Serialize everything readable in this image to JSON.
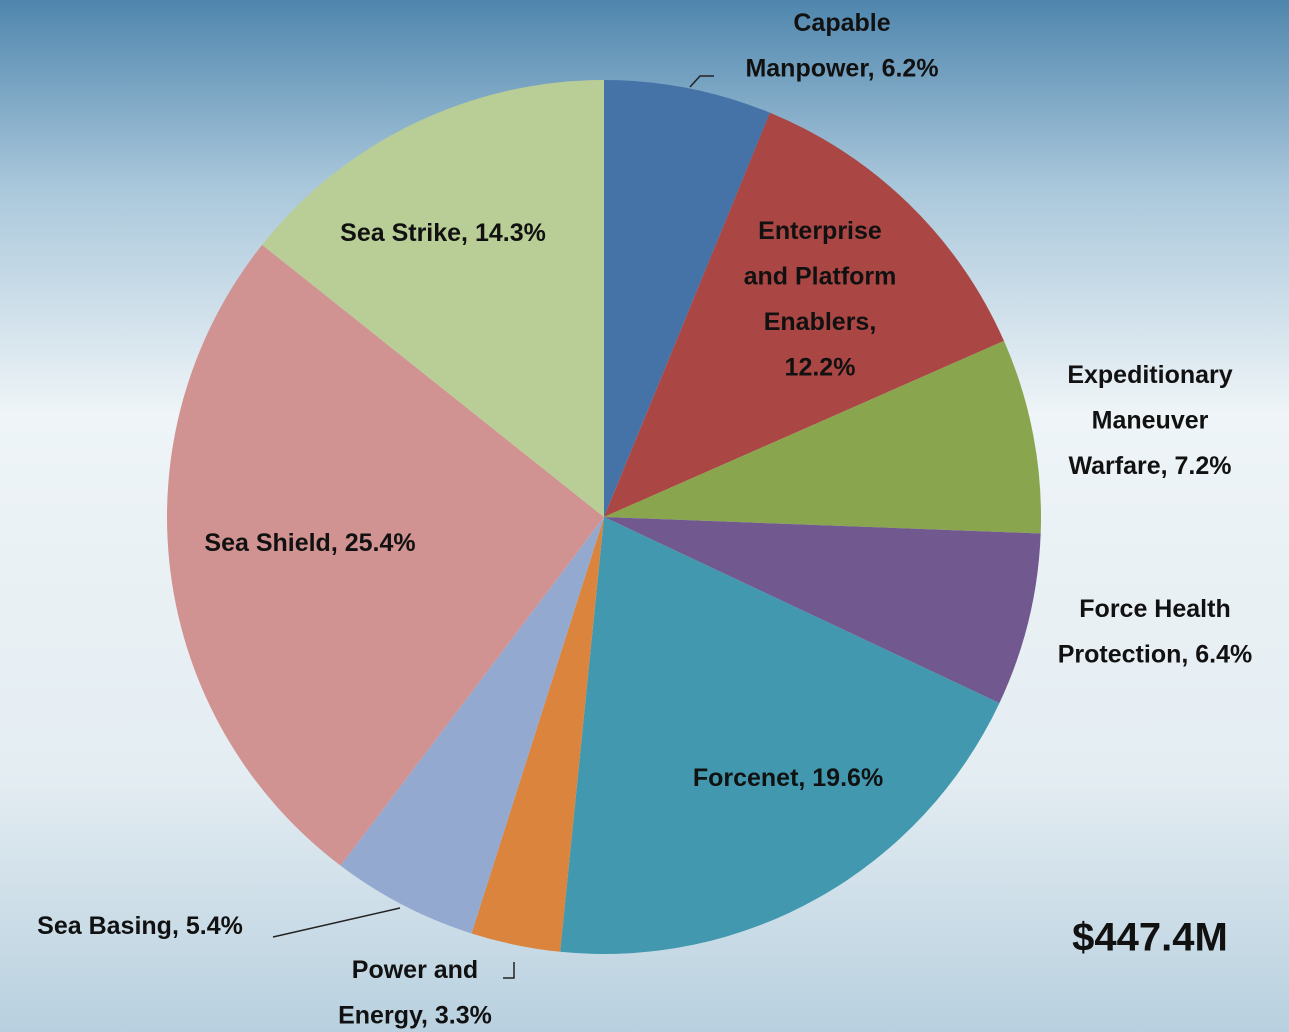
{
  "chart_data": {
    "type": "pie",
    "values": [
      6.2,
      12.2,
      7.2,
      6.4,
      19.6,
      3.3,
      5.4,
      25.4,
      14.3
    ],
    "value_labels": [
      "Capable\nManpower, 6.2%",
      "Enterprise\nand Platform\nEnablers,\n12.2%",
      "Expeditionary\nManeuver\nWarfare, 7.2%",
      "Force Health\nProtection, 6.4%",
      "Forcenet, 19.6%",
      "Power and\nEnergy, 3.3%",
      "Sea Basing,  5.4%",
      "Sea Shield,  25.4%",
      "Sea Strike, 14.3%"
    ],
    "colors": [
      "#4572a7",
      "#aa4643",
      "#89a54e",
      "#71588f",
      "#4198af",
      "#db843d",
      "#93a9cf",
      "#d19392",
      "#b9cd96"
    ],
    "annotation": "$447.4M"
  }
}
